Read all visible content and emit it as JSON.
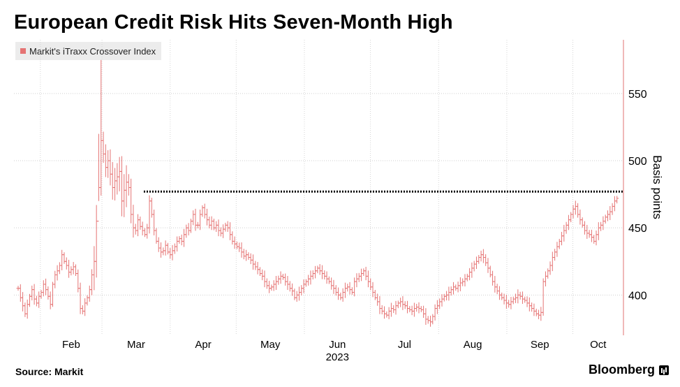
{
  "chart_data": {
    "type": "ohlc",
    "title": "European Credit Risk Hits Seven-Month High",
    "legend": [
      "Markit's iTraxx Crossover Index"
    ],
    "ylabel": "Basis points",
    "yticks": [
      400,
      450,
      500,
      550
    ],
    "ylim": [
      370,
      590
    ],
    "x_ticks": [
      "Feb",
      "Mar",
      "Apr",
      "May",
      "Jun",
      "Jul",
      "Aug",
      "Sep",
      "Oct"
    ],
    "x_year": "2023",
    "x_start": "2023-01-20",
    "x_end": "2023-10-24",
    "grid": "vertical and horizontal dotted",
    "reference_line": {
      "value": 477,
      "from": "2023-03-20",
      "to": "2023-10-24",
      "style": "dotted black"
    },
    "series": [
      {
        "name": "Markit's iTraxx Crossover Index",
        "color": "#e57373",
        "close": [
          405,
          398,
          392,
          386,
          393,
          399,
          404,
          397,
          394,
          399,
          402,
          408,
          404,
          399,
          393,
          408,
          415,
          418,
          422,
          430,
          425,
          422,
          417,
          419,
          421,
          416,
          405,
          390,
          388,
          394,
          398,
          404,
          415,
          425,
          455,
          480,
          515,
          505,
          495,
          500,
          490,
          480,
          485,
          488,
          492,
          470,
          478,
          484,
          480,
          460,
          450,
          448,
          456,
          451,
          448,
          445,
          450,
          470,
          460,
          448,
          440,
          435,
          432,
          433,
          437,
          432,
          430,
          433,
          436,
          440,
          442,
          440,
          445,
          450,
          448,
          455,
          460,
          452,
          452,
          460,
          465,
          460,
          456,
          452,
          455,
          450,
          452,
          448,
          446,
          449,
          452,
          450,
          445,
          440,
          438,
          436,
          435,
          432,
          429,
          430,
          428,
          426,
          423,
          421,
          419,
          416,
          414,
          410,
          407,
          405,
          406,
          408,
          410,
          412,
          414,
          413,
          410,
          408,
          405,
          403,
          398,
          400,
          402,
          405,
          408,
          410,
          412,
          414,
          416,
          418,
          420,
          418,
          416,
          414,
          412,
          410,
          407,
          405,
          402,
          400,
          398,
          402,
          405,
          406,
          404,
          402,
          410,
          412,
          414,
          416,
          418,
          414,
          410,
          406,
          402,
          398,
          395,
          390,
          388,
          386,
          385,
          388,
          390,
          389,
          392,
          394,
          395,
          393,
          392,
          390,
          389,
          388,
          390,
          391,
          390,
          389,
          386,
          382,
          381,
          380,
          384,
          390,
          392,
          395,
          397,
          399,
          400,
          402,
          404,
          406,
          405,
          407,
          409,
          410,
          412,
          414,
          417,
          420,
          423,
          425,
          428,
          430,
          428,
          424,
          420,
          415,
          410,
          406,
          403,
          400,
          398,
          396,
          394,
          393,
          395,
          397,
          398,
          400,
          399,
          397,
          396,
          394,
          392,
          390,
          388,
          386,
          385,
          387,
          410,
          414,
          418,
          422,
          428,
          432,
          436,
          440,
          444,
          448,
          452,
          456,
          460,
          464,
          466,
          460,
          456,
          452,
          448,
          446,
          445,
          443,
          440,
          445,
          450,
          452,
          455,
          458,
          460,
          462,
          466,
          470,
          472
        ]
      }
    ]
  },
  "source": "Source: Markit",
  "brand": "Bloomberg"
}
